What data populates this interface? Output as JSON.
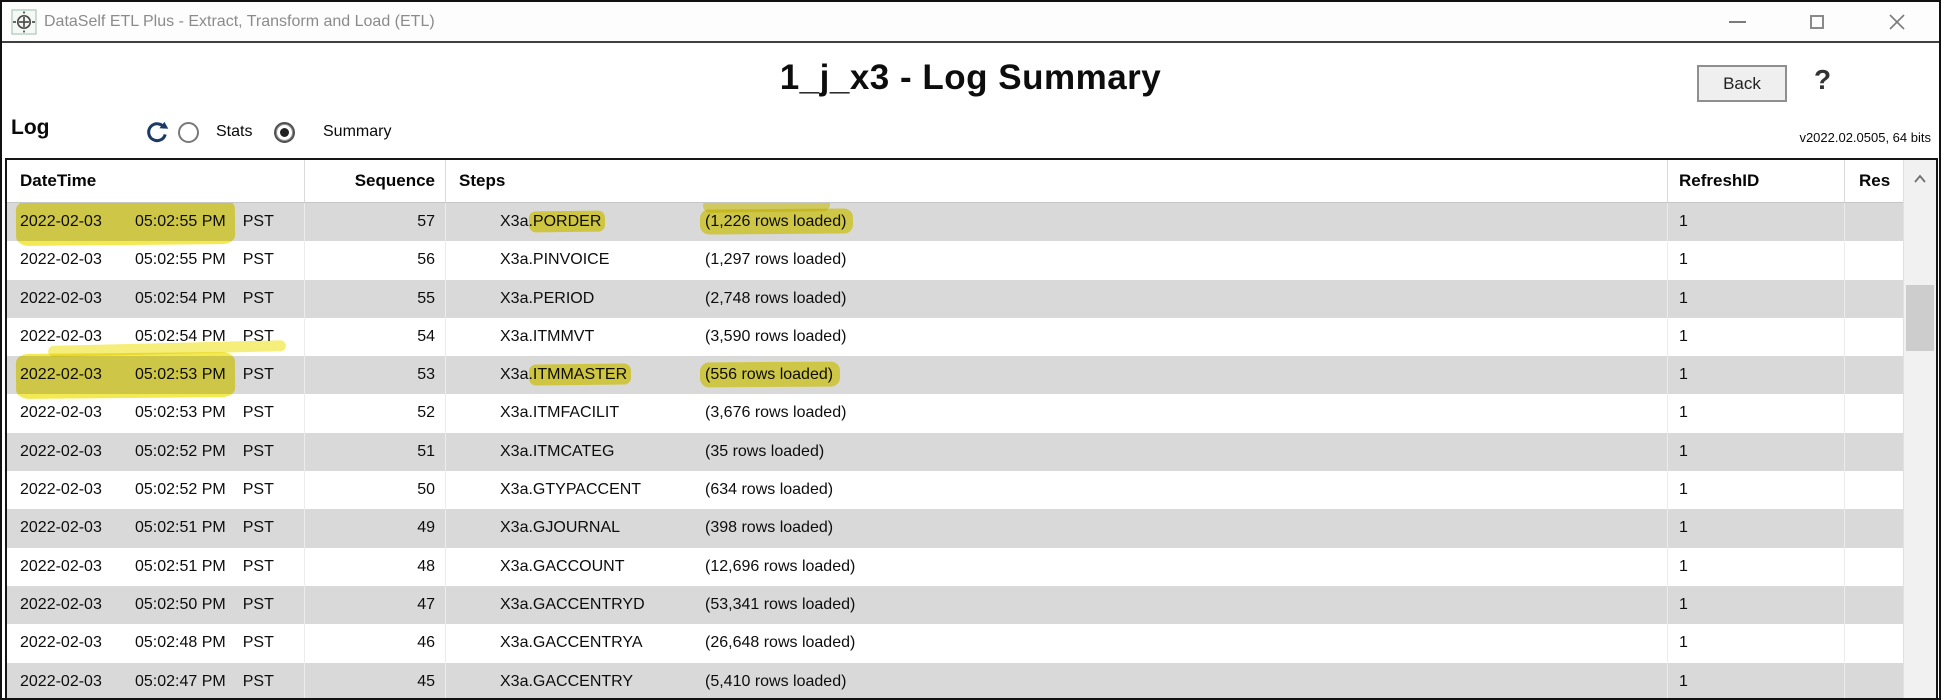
{
  "titlebar": {
    "title": "DataSelf ETL Plus - Extract, Transform and Load (ETL)",
    "app_icon": "crosshair-target-icon"
  },
  "window_controls": {
    "minimize_icon": "minimize",
    "maximize_icon": "maximize",
    "close_icon": "close"
  },
  "header": {
    "title": "1_j_x3 - Log Summary",
    "back_label": "Back",
    "help_label": "?",
    "version": "v2022.02.0505, 64 bits"
  },
  "toolbar": {
    "log_label": "Log",
    "refresh_icon": "refresh-icon",
    "stats_label": "Stats",
    "stats_selected": false,
    "summary_label": "Summary",
    "summary_selected": true
  },
  "table": {
    "columns": [
      "DateTime",
      "Sequence",
      "Steps",
      "RefreshID",
      "Res"
    ],
    "highlight_color": "#f0e322",
    "rows": [
      {
        "date": "2022-02-03",
        "time": "05:02:55 PM",
        "tz": "PST",
        "sequence": "57",
        "step_prefix": "X3a.",
        "step_name": "PORDER",
        "loaded": "(1,226 rows loaded)",
        "refresh_id": "1",
        "result": "",
        "hl_datetime": true,
        "hl_datetime_extra": false,
        "hl_step": true,
        "hl_loaded": true,
        "hl_loaded_up": true
      },
      {
        "date": "2022-02-03",
        "time": "05:02:55 PM",
        "tz": "PST",
        "sequence": "56",
        "step_prefix": "X3a.",
        "step_name": "PINVOICE",
        "loaded": "(1,297 rows loaded)",
        "refresh_id": "1",
        "result": "",
        "hl_datetime": false,
        "hl_datetime_extra": false,
        "hl_step": false,
        "hl_loaded": false,
        "hl_loaded_up": false
      },
      {
        "date": "2022-02-03",
        "time": "05:02:54 PM",
        "tz": "PST",
        "sequence": "55",
        "step_prefix": "X3a.",
        "step_name": "PERIOD",
        "loaded": "(2,748 rows loaded)",
        "refresh_id": "1",
        "result": "",
        "hl_datetime": false,
        "hl_datetime_extra": false,
        "hl_step": false,
        "hl_loaded": false,
        "hl_loaded_up": false
      },
      {
        "date": "2022-02-03",
        "time": "05:02:54 PM",
        "tz": "PST",
        "sequence": "54",
        "step_prefix": "X3a.",
        "step_name": "ITMMVT",
        "loaded": "(3,590 rows loaded)",
        "refresh_id": "1",
        "result": "",
        "hl_datetime": false,
        "hl_datetime_extra": false,
        "hl_step": false,
        "hl_loaded": false,
        "hl_loaded_up": false
      },
      {
        "date": "2022-02-03",
        "time": "05:02:53 PM",
        "tz": "PST",
        "sequence": "53",
        "step_prefix": "X3a.",
        "step_name": "ITMMASTER",
        "loaded": "(556 rows loaded)",
        "refresh_id": "1",
        "result": "",
        "hl_datetime": true,
        "hl_datetime_extra": true,
        "hl_step": true,
        "hl_loaded": true,
        "hl_loaded_up": false
      },
      {
        "date": "2022-02-03",
        "time": "05:02:53 PM",
        "tz": "PST",
        "sequence": "52",
        "step_prefix": "X3a.",
        "step_name": "ITMFACILIT",
        "loaded": "(3,676 rows loaded)",
        "refresh_id": "1",
        "result": "",
        "hl_datetime": false,
        "hl_datetime_extra": false,
        "hl_step": false,
        "hl_loaded": false,
        "hl_loaded_up": false
      },
      {
        "date": "2022-02-03",
        "time": "05:02:52 PM",
        "tz": "PST",
        "sequence": "51",
        "step_prefix": "X3a.",
        "step_name": "ITMCATEG",
        "loaded": "(35 rows loaded)",
        "refresh_id": "1",
        "result": "",
        "hl_datetime": false,
        "hl_datetime_extra": false,
        "hl_step": false,
        "hl_loaded": false,
        "hl_loaded_up": false
      },
      {
        "date": "2022-02-03",
        "time": "05:02:52 PM",
        "tz": "PST",
        "sequence": "50",
        "step_prefix": "X3a.",
        "step_name": "GTYPACCENT",
        "loaded": "(634 rows loaded)",
        "refresh_id": "1",
        "result": "",
        "hl_datetime": false,
        "hl_datetime_extra": false,
        "hl_step": false,
        "hl_loaded": false,
        "hl_loaded_up": false
      },
      {
        "date": "2022-02-03",
        "time": "05:02:51 PM",
        "tz": "PST",
        "sequence": "49",
        "step_prefix": "X3a.",
        "step_name": "GJOURNAL",
        "loaded": "(398 rows loaded)",
        "refresh_id": "1",
        "result": "",
        "hl_datetime": false,
        "hl_datetime_extra": false,
        "hl_step": false,
        "hl_loaded": false,
        "hl_loaded_up": false
      },
      {
        "date": "2022-02-03",
        "time": "05:02:51 PM",
        "tz": "PST",
        "sequence": "48",
        "step_prefix": "X3a.",
        "step_name": "GACCOUNT",
        "loaded": "(12,696 rows loaded)",
        "refresh_id": "1",
        "result": "",
        "hl_datetime": false,
        "hl_datetime_extra": false,
        "hl_step": false,
        "hl_loaded": false,
        "hl_loaded_up": false
      },
      {
        "date": "2022-02-03",
        "time": "05:02:50 PM",
        "tz": "PST",
        "sequence": "47",
        "step_prefix": "X3a.",
        "step_name": "GACCENTRYD",
        "loaded": "(53,341 rows loaded)",
        "refresh_id": "1",
        "result": "",
        "hl_datetime": false,
        "hl_datetime_extra": false,
        "hl_step": false,
        "hl_loaded": false,
        "hl_loaded_up": false
      },
      {
        "date": "2022-02-03",
        "time": "05:02:48 PM",
        "tz": "PST",
        "sequence": "46",
        "step_prefix": "X3a.",
        "step_name": "GACCENTRYA",
        "loaded": "(26,648 rows loaded)",
        "refresh_id": "1",
        "result": "",
        "hl_datetime": false,
        "hl_datetime_extra": false,
        "hl_step": false,
        "hl_loaded": false,
        "hl_loaded_up": false
      },
      {
        "date": "2022-02-03",
        "time": "05:02:47 PM",
        "tz": "PST",
        "sequence": "45",
        "step_prefix": "X3a.",
        "step_name": "GACCENTRY",
        "loaded": "(5,410 rows loaded)",
        "refresh_id": "1",
        "result": "",
        "hl_datetime": false,
        "hl_datetime_extra": false,
        "hl_step": false,
        "hl_loaded": false,
        "hl_loaded_up": false
      }
    ]
  }
}
